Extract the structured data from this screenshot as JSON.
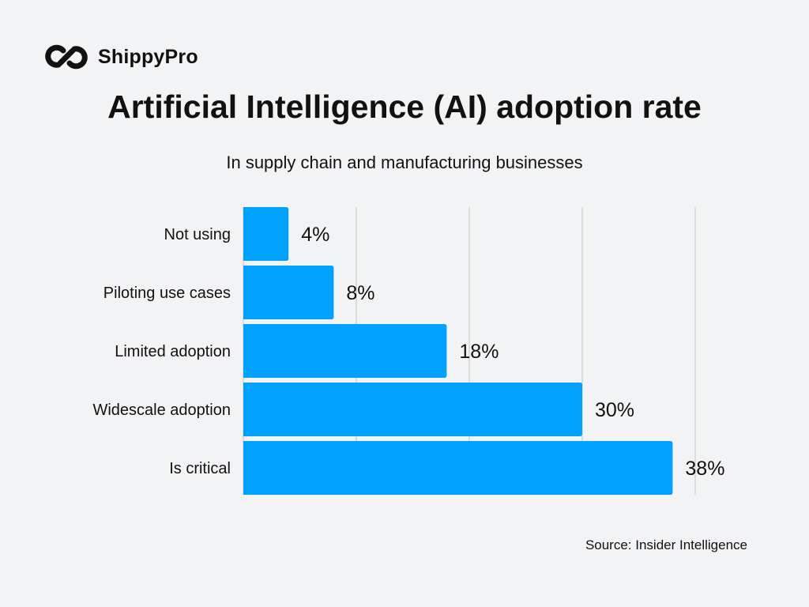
{
  "brand": {
    "name": "ShippyPro",
    "logo_icon": "infinity-link-icon"
  },
  "chart_data": {
    "type": "bar",
    "orientation": "horizontal",
    "title": "Artificial Intelligence (AI) adoption rate",
    "subtitle": "In supply chain and manufacturing businesses",
    "categories": [
      "Not using",
      "Piloting use cases",
      "Limited adoption",
      "Widescale adoption",
      "Is critical"
    ],
    "values": [
      4,
      8,
      18,
      30,
      38
    ],
    "data_labels": [
      "4%",
      "8%",
      "18%",
      "30%",
      "38%"
    ],
    "xlim": [
      0,
      40
    ],
    "grid": true,
    "gridlines": [
      10,
      20,
      30,
      40
    ],
    "xlabel": "",
    "ylabel": "",
    "bar_color": "#00a1ff",
    "background": "#f2f3f5"
  },
  "source": "Source: Insider Intelligence"
}
